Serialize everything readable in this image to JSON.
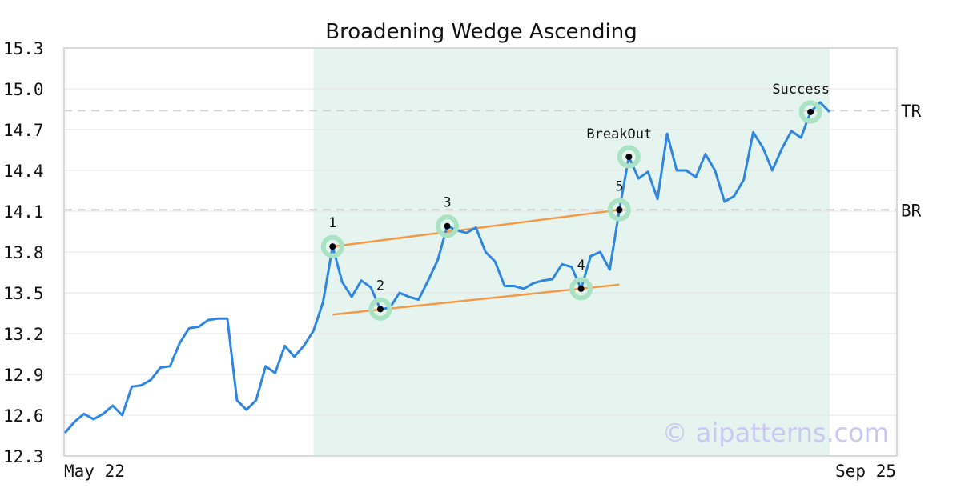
{
  "chart_data": {
    "type": "line",
    "title": "Broadening Wedge Ascending",
    "xlabel": "",
    "ylabel": "",
    "ylim": [
      12.3,
      15.3
    ],
    "yticks": [
      "15.3",
      "15.0",
      "14.7",
      "14.4",
      "14.1",
      "13.8",
      "13.5",
      "13.2",
      "12.9",
      "12.6",
      "12.3"
    ],
    "x_start_label": "May 22",
    "x_end_label": "Sep 25",
    "grid": "horizontal",
    "colors": {
      "line": "#2f86e0",
      "trend": "#f39a48",
      "highlight": "#e6f4ef",
      "marker_ring": "#a9e3c4",
      "grid": "#e4e4e4",
      "level": "#d2d2d2"
    },
    "series": [
      {
        "values": [
          12.47,
          12.55,
          12.61,
          12.57,
          12.61,
          12.67,
          12.6,
          12.81,
          12.82,
          12.86,
          12.95,
          12.96,
          13.13,
          13.24,
          13.25,
          13.3,
          13.31,
          13.31,
          12.71,
          12.64,
          12.71,
          12.96,
          12.91,
          13.11,
          13.03,
          13.11,
          13.22,
          13.43,
          13.84,
          13.58,
          13.47,
          13.59,
          13.54,
          13.38,
          13.39,
          13.5,
          13.47,
          13.45,
          13.59,
          13.74,
          13.99,
          13.96,
          13.94,
          13.98,
          13.8,
          13.73,
          13.55,
          13.55,
          13.53,
          13.57,
          13.59,
          13.6,
          13.71,
          13.69,
          13.53,
          13.77,
          13.8,
          13.67,
          14.11,
          14.5,
          14.34,
          14.39,
          14.19,
          14.67,
          14.4,
          14.4,
          14.35,
          14.52,
          14.4,
          14.17,
          14.21,
          14.33,
          14.68,
          14.57,
          14.4,
          14.56,
          14.69,
          14.64,
          14.83,
          14.9,
          14.83
        ]
      }
    ],
    "highlight_range": [
      26,
      80
    ],
    "pattern_points": [
      {
        "label": "1",
        "index": 28,
        "value": 13.84
      },
      {
        "label": "2",
        "index": 33,
        "value": 13.38
      },
      {
        "label": "3",
        "index": 40,
        "value": 13.99
      },
      {
        "label": "4",
        "index": 54,
        "value": 13.53
      },
      {
        "label": "5",
        "index": 58,
        "value": 14.11
      }
    ],
    "annotations": [
      {
        "label": "BreakOut",
        "index": 59,
        "value": 14.5
      },
      {
        "label": "Success",
        "index": 78,
        "value": 14.83
      }
    ],
    "trendlines": [
      {
        "from": {
          "index": 28,
          "value": 13.84
        },
        "to": {
          "index": 58,
          "value": 14.11
        }
      },
      {
        "from": {
          "index": 28,
          "value": 13.34
        },
        "to": {
          "index": 58,
          "value": 13.56
        }
      }
    ],
    "levels": [
      {
        "label": "TR",
        "value": 14.84
      },
      {
        "label": "BR",
        "value": 14.11
      }
    ],
    "watermark": "© aipatterns.com"
  }
}
